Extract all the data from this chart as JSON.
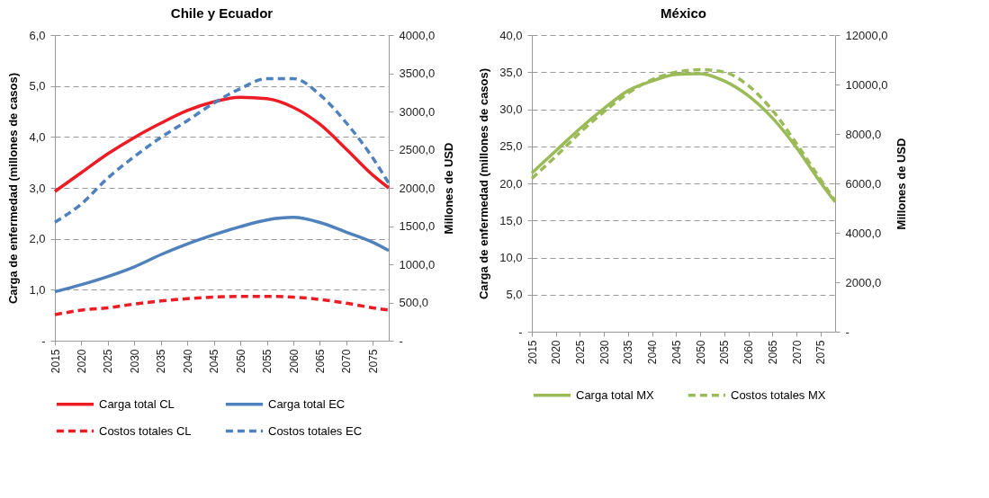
{
  "chart_data": [
    {
      "type": "line",
      "title": "Chile y Ecuador",
      "ylabel": "Carga de enfermedad (millones de casos)",
      "y2label": "Millones  de USD",
      "x": [
        2015,
        2020,
        2025,
        2030,
        2035,
        2040,
        2045,
        2050,
        2055,
        2060,
        2065,
        2070,
        2075,
        2078
      ],
      "xlim": [
        2015,
        2078
      ],
      "xticks": [
        2015,
        2020,
        2025,
        2030,
        2035,
        2040,
        2045,
        2050,
        2055,
        2060,
        2065,
        2070,
        2075
      ],
      "ylim": [
        0,
        6
      ],
      "yticks": [
        {
          "value": 0,
          "label": "-"
        },
        {
          "value": 1,
          "label": "1,0"
        },
        {
          "value": 2,
          "label": "2,0"
        },
        {
          "value": 3,
          "label": "3,0"
        },
        {
          "value": 4,
          "label": "4,0"
        },
        {
          "value": 5,
          "label": "5,0"
        },
        {
          "value": 6,
          "label": "6,0"
        }
      ],
      "y2lim": [
        0,
        4000
      ],
      "y2ticks": [
        {
          "value": 0,
          "label": "-"
        },
        {
          "value": 500,
          "label": "500,0"
        },
        {
          "value": 1000,
          "label": "1000,0"
        },
        {
          "value": 1500,
          "label": "1500,0"
        },
        {
          "value": 2000,
          "label": "2000,0"
        },
        {
          "value": 2500,
          "label": "2500,0"
        },
        {
          "value": 3000,
          "label": "3000,0"
        },
        {
          "value": 3500,
          "label": "3500,0"
        },
        {
          "value": 4000,
          "label": "4000,0"
        }
      ],
      "grid": "y",
      "legend": "bottom",
      "series": [
        {
          "name": "Carga total CL",
          "color": "#ed1c24",
          "line_style": "solid",
          "values": [
            2.93,
            3.3,
            3.67,
            3.99,
            4.27,
            4.52,
            4.69,
            4.78,
            4.75,
            4.58,
            4.25,
            3.76,
            3.25,
            3.0
          ]
        },
        {
          "name": "Carga total EC",
          "color": "#4f81bd",
          "line_style": "solid",
          "values": [
            0.96,
            1.1,
            1.26,
            1.45,
            1.69,
            1.9,
            2.08,
            2.24,
            2.37,
            2.42,
            2.32,
            2.13,
            1.93,
            1.77
          ]
        },
        {
          "name": "Costos totales CL",
          "color": "#ed1c24",
          "line_style": "dashed",
          "axis": "y2",
          "values": [
            340,
            400,
            430,
            480,
            520,
            550,
            570,
            580,
            580,
            570,
            540,
            490,
            430,
            400
          ]
        },
        {
          "name": "Costos totales EC",
          "color": "#4f81bd",
          "line_style": "dashed",
          "axis": "y2",
          "values": [
            1550,
            1790,
            2130,
            2410,
            2660,
            2880,
            3110,
            3300,
            3430,
            3430,
            3220,
            2850,
            2390,
            2060
          ]
        }
      ]
    },
    {
      "type": "line",
      "title": "México",
      "ylabel": "Carga de enfermedad (millones de casos)",
      "y2label": "Millones de USD",
      "x": [
        2015,
        2020,
        2025,
        2030,
        2035,
        2040,
        2045,
        2050,
        2055,
        2060,
        2065,
        2070,
        2075,
        2078
      ],
      "xlim": [
        2015,
        2078
      ],
      "xticks": [
        2015,
        2020,
        2025,
        2030,
        2035,
        2040,
        2045,
        2050,
        2055,
        2060,
        2065,
        2070,
        2075
      ],
      "ylim": [
        0,
        40
      ],
      "yticks": [
        {
          "value": 0,
          "label": "-"
        },
        {
          "value": 5,
          "label": "5,0"
        },
        {
          "value": 10,
          "label": "10,0"
        },
        {
          "value": 15,
          "label": "15,0"
        },
        {
          "value": 20,
          "label": "20,0"
        },
        {
          "value": 25,
          "label": "25,0"
        },
        {
          "value": 30,
          "label": "30,0"
        },
        {
          "value": 35,
          "label": "35,0"
        },
        {
          "value": 40,
          "label": "40,0"
        }
      ],
      "y2lim": [
        0,
        12000
      ],
      "y2ticks": [
        {
          "value": 0,
          "label": "-"
        },
        {
          "value": 2000,
          "label": "2000,0"
        },
        {
          "value": 4000,
          "label": "4000,0"
        },
        {
          "value": 6000,
          "label": "6000,0"
        },
        {
          "value": 8000,
          "label": "8000,0"
        },
        {
          "value": 10000,
          "label": "10000,0"
        },
        {
          "value": 12000,
          "label": "12000,0"
        }
      ],
      "grid": "y",
      "legend": "bottom",
      "series": [
        {
          "name": "Carga total MX",
          "color": "#9bbb59",
          "line_style": "solid",
          "values": [
            21.4,
            24.4,
            27.4,
            30.1,
            32.5,
            33.8,
            34.7,
            34.8,
            33.8,
            31.8,
            28.8,
            24.8,
            20.1,
            17.5
          ]
        },
        {
          "name": "Costos totales MX",
          "color": "#9bbb59",
          "line_style": "dashed",
          "axis": "y2",
          "values": [
            6200,
            7100,
            8050,
            8900,
            9650,
            10200,
            10500,
            10600,
            10500,
            9950,
            8950,
            7600,
            6150,
            5300
          ]
        }
      ]
    }
  ]
}
